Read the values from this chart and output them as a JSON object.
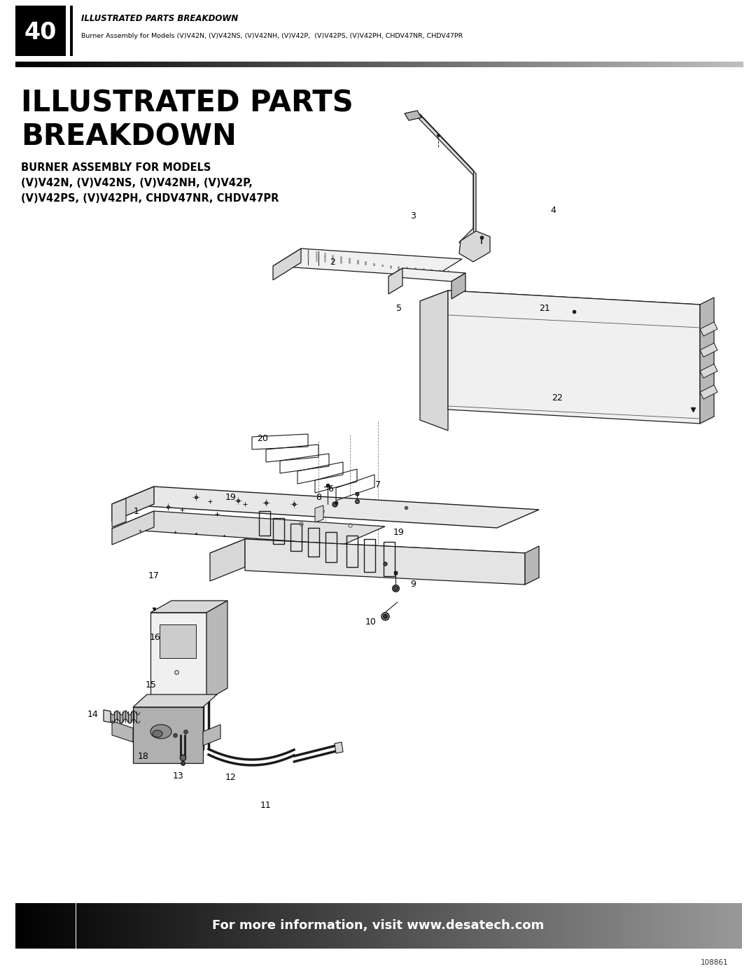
{
  "page_bg": "#ffffff",
  "header_box_text": "40",
  "header_title": "ILLUSTRATED PARTS BREAKDOWN",
  "header_subtitle": "Burner Assembly for Models (V)V42N, (V)V42NS, (V)V42NH, (V)V42P,  (V)V42PS, (V)V42PH, CHDV47NR, CHDV47PR",
  "section_title_line1": "ILLUSTRATED PARTS",
  "section_title_line2": "BREAKDOWN",
  "section_subtitle_line1": "BURNER ASSEMBLY FOR MODELS",
  "section_subtitle_line2": "(V)V42N, (V)V42NS, (V)V42NH, (V)V42P,",
  "section_subtitle_line3": "(V)V42PS, (V)V42PH, CHDV47NR, CHDV47PR",
  "footer_text": "For more information, visit www.desatech.com",
  "footer_note": "108861",
  "draw_color": "#1a1a1a",
  "fill_light": "#f0f0f0",
  "fill_mid": "#d8d8d8",
  "fill_dark": "#b8b8b8"
}
